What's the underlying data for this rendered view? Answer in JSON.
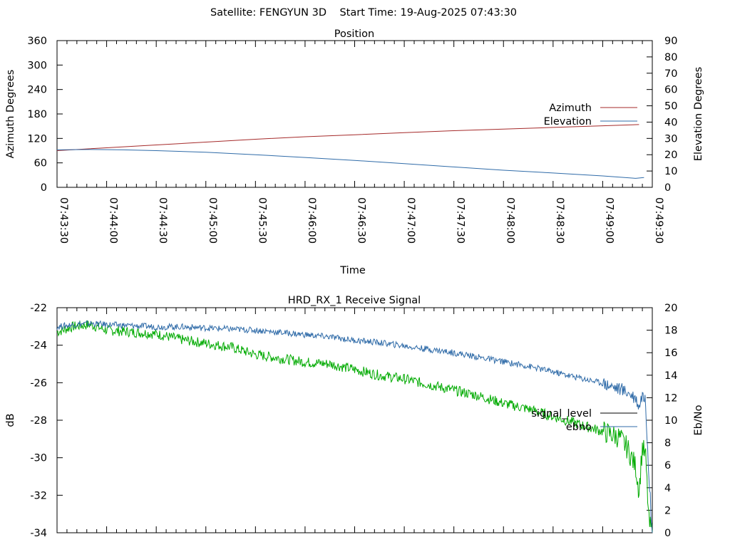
{
  "header": {
    "text": "Satellite: FENGYUN 3D    Start Time: 19-Aug-2025 07:43:30"
  },
  "chart_data": [
    {
      "type": "line",
      "title": "Position",
      "xlabel": "Time",
      "ylabel": "Azimuth Degrees",
      "y2label": "Elevation Degrees",
      "x_ticks": [
        "07:43:30",
        "07:44:00",
        "07:44:30",
        "07:45:00",
        "07:45:30",
        "07:46:00",
        "07:46:30",
        "07:47:00",
        "07:47:30",
        "07:48:00",
        "07:48:30",
        "07:49:00",
        "07:49:30"
      ],
      "xlim": [
        0,
        360
      ],
      "ylim": [
        0,
        360
      ],
      "y_ticks": [
        0,
        60,
        120,
        180,
        240,
        300,
        360
      ],
      "y2lim": [
        0,
        90
      ],
      "y2_ticks": [
        0,
        10,
        20,
        30,
        40,
        50,
        60,
        70,
        80,
        90
      ],
      "legend_position": "right",
      "grid": false,
      "series": [
        {
          "name": "Azimuth",
          "axis": "y",
          "color": "#a52a2a",
          "x": [
            0,
            30,
            60,
            90,
            120,
            150,
            180,
            210,
            240,
            270,
            300,
            330,
            352
          ],
          "y": [
            90,
            97,
            104,
            111,
            118,
            124,
            129,
            134,
            139,
            143,
            147,
            151,
            154
          ]
        },
        {
          "name": "Elevation",
          "axis": "y2",
          "color": "#2f6ba8",
          "x": [
            0,
            20,
            40,
            60,
            90,
            120,
            150,
            180,
            210,
            240,
            270,
            300,
            330,
            350,
            355
          ],
          "y": [
            23,
            23.2,
            23,
            22.5,
            21.5,
            20,
            18.3,
            16.5,
            14.5,
            12.5,
            10.5,
            8.8,
            7,
            5.5,
            6
          ]
        }
      ]
    },
    {
      "type": "line",
      "title": "HRD_RX_1 Receive Signal",
      "xlabel": "",
      "ylabel": "dB",
      "y2label": "Eb/No",
      "xlim": [
        0,
        360
      ],
      "ylim": [
        -34,
        -22
      ],
      "y_ticks": [
        -34,
        -32,
        -30,
        -28,
        -26,
        -24,
        -22
      ],
      "y2lim": [
        0,
        20
      ],
      "y2_ticks": [
        0,
        2,
        4,
        6,
        8,
        10,
        12,
        14,
        16,
        18,
        20
      ],
      "legend_position": "right",
      "grid": false,
      "series": [
        {
          "name": "signal_level",
          "axis": "y",
          "color": "#00aa00",
          "x": [
            0,
            10,
            20,
            30,
            45,
            60,
            75,
            90,
            105,
            120,
            135,
            150,
            165,
            180,
            195,
            210,
            225,
            240,
            255,
            270,
            285,
            300,
            315,
            330,
            340,
            345,
            350,
            352,
            354,
            356,
            358,
            360
          ],
          "y": [
            -23.3,
            -23.0,
            -22.9,
            -23.2,
            -23.3,
            -23.4,
            -23.7,
            -23.9,
            -24.1,
            -24.5,
            -24.7,
            -24.9,
            -25.0,
            -25.3,
            -25.6,
            -25.8,
            -26.1,
            -26.4,
            -26.7,
            -27.1,
            -27.4,
            -27.8,
            -28.2,
            -28.6,
            -28.9,
            -29.5,
            -30.5,
            -31.8,
            -29.4,
            -30.0,
            -33.5,
            -34.0
          ]
        },
        {
          "name": "ebno",
          "axis": "y2",
          "color": "#2f6ba8",
          "x": [
            0,
            10,
            20,
            30,
            45,
            60,
            75,
            90,
            105,
            120,
            135,
            150,
            165,
            180,
            195,
            210,
            225,
            240,
            255,
            270,
            285,
            300,
            315,
            330,
            340,
            345,
            350,
            352,
            354,
            356,
            358,
            360
          ],
          "y": [
            18.3,
            18.5,
            18.6,
            18.5,
            18.4,
            18.3,
            18.3,
            18.2,
            18.1,
            18.0,
            17.8,
            17.6,
            17.4,
            17.1,
            16.9,
            16.6,
            16.3,
            16.0,
            15.6,
            15.2,
            14.8,
            14.3,
            13.8,
            13.3,
            12.8,
            12.5,
            12.0,
            11.2,
            12.4,
            11.5,
            5.0,
            0.0
          ]
        }
      ]
    }
  ]
}
